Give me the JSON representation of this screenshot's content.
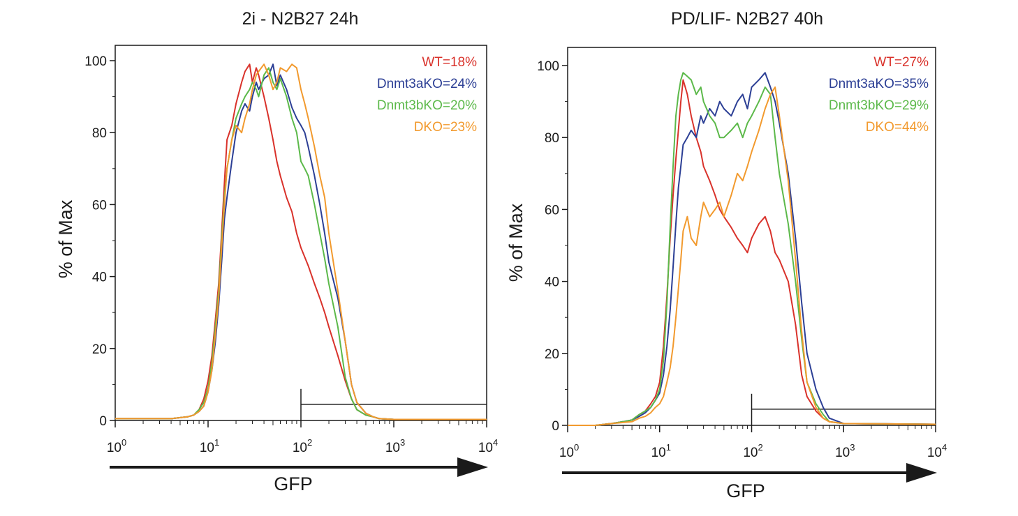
{
  "colors": {
    "WT": "#d9322b",
    "Dnmt3aKO": "#2c3f95",
    "Dnmt3bKO": "#5cb94a",
    "DKO": "#f29a2e",
    "axis": "#1a1a1a"
  },
  "chart_data": [
    {
      "type": "line",
      "title": "2i - N2B27 24h",
      "xlabel": "GFP",
      "ylabel": "% of Max",
      "xscale": "log",
      "xlim": [
        1,
        10000
      ],
      "ylim": [
        0,
        100
      ],
      "yticks": [
        "0",
        "20",
        "40",
        "60",
        "80",
        "100"
      ],
      "xticks": [
        {
          "base": "10",
          "exp": "0"
        },
        {
          "base": "10",
          "exp": "1"
        },
        {
          "base": "10",
          "exp": "2"
        },
        {
          "base": "10",
          "exp": "3"
        },
        {
          "base": "10",
          "exp": "4"
        }
      ],
      "gate": {
        "x_start": 100,
        "x_end": 10000,
        "y": 4.5
      },
      "legend": [
        {
          "label": "WT=18%",
          "color": "#d9322b"
        },
        {
          "label": "Dnmt3aKO=24%",
          "color": "#2c3f95"
        },
        {
          "label": "Dnmt3bKO=20%",
          "color": "#5cb94a"
        },
        {
          "label": "DKO=23%",
          "color": "#f29a2e"
        }
      ],
      "series": [
        {
          "color": "#d9322b",
          "x": [
            1,
            4,
            6,
            7,
            8,
            9,
            10,
            11,
            12,
            13,
            14,
            15,
            16,
            18,
            20,
            23,
            25,
            28,
            30,
            33,
            35,
            40,
            45,
            50,
            55,
            60,
            70,
            80,
            90,
            100,
            120,
            140,
            160,
            180,
            200,
            250,
            300,
            350,
            400,
            500,
            600,
            700,
            1000,
            10000
          ],
          "y": [
            0.5,
            0.5,
            1,
            1.5,
            3,
            6,
            11,
            18,
            28,
            38,
            52,
            66,
            78,
            82,
            88,
            94,
            97,
            99,
            94,
            98,
            96,
            90,
            84,
            78,
            72,
            68,
            62,
            58,
            52,
            48,
            43,
            38,
            34,
            30,
            26,
            18,
            11,
            6,
            3,
            1.5,
            1,
            0.5,
            0.3,
            0.3
          ]
        },
        {
          "color": "#2c3f95",
          "x": [
            1,
            4,
            6,
            7,
            8,
            9,
            10,
            11,
            12,
            13,
            14,
            15,
            16,
            18,
            20,
            23,
            25,
            28,
            30,
            33,
            35,
            40,
            45,
            50,
            55,
            60,
            70,
            80,
            90,
            100,
            110,
            120,
            140,
            160,
            180,
            200,
            250,
            300,
            350,
            400,
            500,
            600,
            700,
            1000,
            10000
          ],
          "y": [
            0.5,
            0.5,
            1,
            1.5,
            2.5,
            4,
            8,
            14,
            22,
            32,
            44,
            56,
            62,
            72,
            80,
            86,
            88,
            86,
            90,
            94,
            92,
            95,
            96,
            99,
            93,
            96,
            92,
            87,
            84,
            82,
            80,
            76,
            68,
            60,
            52,
            44,
            34,
            22,
            10,
            5,
            2,
            1,
            0.5,
            0.3,
            0.3
          ]
        },
        {
          "color": "#5cb94a",
          "x": [
            1,
            4,
            6,
            7,
            8,
            9,
            10,
            11,
            12,
            13,
            14,
            15,
            16,
            18,
            20,
            23,
            25,
            28,
            30,
            33,
            35,
            40,
            45,
            50,
            55,
            60,
            70,
            80,
            90,
            100,
            110,
            120,
            140,
            160,
            180,
            200,
            250,
            300,
            350,
            400,
            500,
            600,
            700,
            1000,
            10000
          ],
          "y": [
            0.5,
            0.5,
            1,
            1.5,
            3,
            5,
            9,
            16,
            26,
            36,
            50,
            62,
            70,
            78,
            84,
            88,
            90,
            92,
            94,
            92,
            90,
            96,
            98,
            94,
            92,
            95,
            90,
            84,
            80,
            72,
            70,
            68,
            60,
            52,
            45,
            38,
            26,
            12,
            6,
            3,
            1.5,
            1,
            0.5,
            0.3,
            0.3
          ]
        },
        {
          "color": "#f29a2e",
          "x": [
            1,
            4,
            6,
            7,
            8,
            9,
            10,
            11,
            12,
            13,
            14,
            15,
            16,
            18,
            20,
            23,
            25,
            28,
            30,
            33,
            35,
            40,
            45,
            50,
            55,
            60,
            70,
            80,
            90,
            100,
            110,
            120,
            140,
            160,
            180,
            200,
            250,
            300,
            350,
            400,
            500,
            600,
            700,
            1000,
            10000
          ],
          "y": [
            0.5,
            0.5,
            1,
            1.5,
            2.5,
            4,
            8,
            14,
            24,
            34,
            48,
            60,
            70,
            78,
            82,
            80,
            84,
            88,
            92,
            96,
            97,
            99,
            96,
            92,
            94,
            98,
            97,
            99,
            98,
            92,
            88,
            84,
            76,
            68,
            62,
            52,
            36,
            22,
            10,
            5,
            2,
            1,
            0.5,
            0.3,
            0.3
          ]
        }
      ]
    },
    {
      "type": "line",
      "title": "PD/LIF- N2B27 40h",
      "xlabel": "GFP",
      "ylabel": "% of Max",
      "xscale": "log",
      "xlim": [
        1,
        10000
      ],
      "ylim": [
        0,
        100
      ],
      "yticks": [
        "0",
        "20",
        "40",
        "60",
        "80",
        "100"
      ],
      "xticks": [
        {
          "base": "10",
          "exp": "0"
        },
        {
          "base": "10",
          "exp": "1"
        },
        {
          "base": "10",
          "exp": "2"
        },
        {
          "base": "10",
          "exp": "3"
        },
        {
          "base": "10",
          "exp": "4"
        }
      ],
      "gate": {
        "x_start": 100,
        "x_end": 10000,
        "y": 4.5
      },
      "legend": [
        {
          "label": "WT=27%",
          "color": "#d9322b"
        },
        {
          "label": "Dnmt3aKO=35%",
          "color": "#2c3f95"
        },
        {
          "label": "Dnmt3bKO=29%",
          "color": "#5cb94a"
        },
        {
          "label": "DKO=44%",
          "color": "#f29a2e"
        }
      ],
      "series": [
        {
          "color": "#d9322b",
          "x": [
            1,
            2,
            3,
            4,
            5,
            6,
            7,
            8,
            9,
            10,
            11,
            12,
            13,
            14,
            15,
            16,
            17,
            18,
            20,
            22,
            25,
            28,
            30,
            35,
            40,
            45,
            50,
            60,
            70,
            80,
            90,
            100,
            120,
            140,
            160,
            180,
            200,
            250,
            300,
            350,
            400,
            500,
            600,
            700,
            1000,
            10000
          ],
          "y": [
            0,
            0,
            0.5,
            1,
            1.5,
            3,
            4,
            6,
            8,
            12,
            22,
            36,
            52,
            64,
            74,
            82,
            90,
            96,
            92,
            86,
            80,
            76,
            72,
            68,
            64,
            60,
            58,
            55,
            52,
            50,
            48,
            52,
            56,
            58,
            54,
            48,
            46,
            40,
            28,
            14,
            8,
            4,
            2,
            1,
            0.5,
            0.3
          ]
        },
        {
          "color": "#2c3f95",
          "x": [
            1,
            2,
            3,
            4,
            5,
            6,
            7,
            8,
            9,
            10,
            11,
            12,
            13,
            14,
            15,
            16,
            17,
            18,
            20,
            22,
            25,
            28,
            30,
            35,
            40,
            45,
            50,
            60,
            70,
            80,
            90,
            100,
            120,
            140,
            160,
            180,
            200,
            250,
            300,
            350,
            400,
            500,
            600,
            700,
            1000,
            10000
          ],
          "y": [
            0,
            0,
            0.5,
            1,
            1.5,
            2.5,
            3.5,
            5,
            7,
            9,
            14,
            22,
            32,
            44,
            56,
            66,
            72,
            78,
            80,
            82,
            80,
            86,
            84,
            88,
            86,
            90,
            88,
            86,
            90,
            92,
            88,
            94,
            96,
            98,
            94,
            90,
            84,
            70,
            52,
            34,
            20,
            10,
            5,
            2,
            0.5,
            0.3
          ]
        },
        {
          "color": "#5cb94a",
          "x": [
            1,
            2,
            3,
            4,
            5,
            6,
            7,
            8,
            9,
            10,
            11,
            12,
            13,
            14,
            15,
            16,
            17,
            18,
            20,
            22,
            25,
            28,
            30,
            35,
            40,
            45,
            50,
            60,
            70,
            80,
            90,
            100,
            120,
            140,
            160,
            180,
            200,
            250,
            300,
            350,
            400,
            500,
            600,
            700,
            1000,
            10000
          ],
          "y": [
            0,
            0,
            0.5,
            1,
            1.5,
            3,
            4,
            5,
            7,
            10,
            18,
            34,
            55,
            72,
            86,
            92,
            96,
            98,
            97,
            96,
            92,
            94,
            90,
            86,
            84,
            80,
            80,
            82,
            84,
            80,
            84,
            86,
            90,
            94,
            92,
            80,
            70,
            56,
            40,
            24,
            12,
            6,
            3,
            1,
            0.5,
            0.3
          ]
        },
        {
          "color": "#f29a2e",
          "x": [
            1,
            2,
            3,
            4,
            5,
            6,
            7,
            8,
            9,
            10,
            11,
            12,
            13,
            14,
            15,
            16,
            17,
            18,
            20,
            22,
            25,
            28,
            30,
            35,
            40,
            45,
            50,
            60,
            70,
            80,
            90,
            100,
            120,
            140,
            160,
            180,
            200,
            250,
            300,
            350,
            400,
            500,
            600,
            700,
            1000,
            10000
          ],
          "y": [
            0,
            0,
            0.5,
            0.8,
            1,
            2,
            2.5,
            3.5,
            5,
            6,
            8,
            12,
            16,
            22,
            30,
            38,
            46,
            54,
            58,
            52,
            50,
            58,
            62,
            58,
            60,
            62,
            58,
            64,
            70,
            68,
            72,
            76,
            82,
            88,
            92,
            94,
            86,
            68,
            46,
            26,
            12,
            5,
            2,
            1,
            0.5,
            0.3
          ]
        }
      ]
    }
  ]
}
